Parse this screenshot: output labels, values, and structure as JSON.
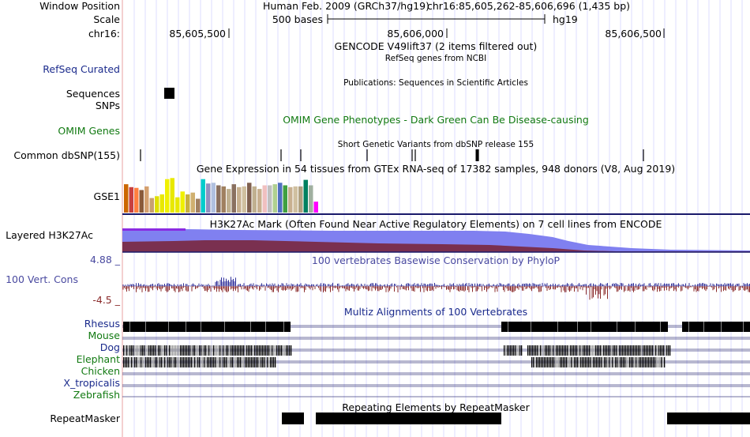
{
  "header": {
    "window_position_label": "Window Position",
    "scale_label": "Scale",
    "chrom_label": "chr16:",
    "assembly_text": "Human Feb. 2009 (GRCh37/hg19)",
    "position_text": "chr16:85,605,262-85,606,696 (1,435 bp)",
    "scale_text": "500 bases",
    "scale_db": "hg19",
    "ruler_ticks": [
      "85,605,500",
      "85,606,000",
      "85,606,500"
    ]
  },
  "tracks": {
    "gencode_title": "GENCODE V49lift37 (2 items filtered out)",
    "refseq_title": "RefSeq genes from NCBI",
    "refseq_label": "RefSeq Curated",
    "publications_title": "Publications: Sequences in Scientific Articles",
    "sequences_label": "Sequences",
    "snps_label": "SNPs",
    "omim_title": "OMIM Gene Phenotypes - Dark Green Can Be Disease-causing",
    "omim_label": "OMIM Genes",
    "dbsnp_title": "Short Genetic Variants from dbSNP release 155",
    "dbsnp_label": "Common dbSNP(155)",
    "gtex_title": "Gene Expression in 54 tissues from GTEx RNA-seq of 17382 samples, 948 donors (V8, Aug 2019)",
    "gtex_label": "GSE1",
    "h3k27ac_title": "H3K27Ac Mark (Often Found Near Active Regulatory Elements) on 7 cell lines from ENCODE",
    "h3k27ac_label": "Layered H3K27Ac",
    "cons_title": "100 vertebrates Basewise Conservation by PhyloP",
    "cons_label": "100 Vert. Cons",
    "cons_max": "4.88 _",
    "cons_min": "-4.5 _",
    "multiz_title": "Multiz Alignments of 100 Vertebrates",
    "species": [
      "Rhesus",
      "Mouse",
      "Dog",
      "Elephant",
      "Chicken",
      "X_tropicalis",
      "Zebrafish"
    ],
    "repeat_title": "Repeating Elements by RepeatMasker",
    "repeat_label": "RepeatMasker"
  },
  "colors": {
    "label_blue": "#1a2a8c",
    "label_green": "#127a12",
    "cons_blue": "#4a4aa0",
    "cons_red": "#8a2a2a",
    "h3k_light": "#8080f0",
    "h3k_dark": "#7a3050",
    "h3k_purple": "#8a2be2",
    "grid": "#c8c8ff"
  },
  "gtex_bar_colors": [
    "#cc6600",
    "#c84040",
    "#ff8040",
    "#8a5a3a",
    "#d4a070",
    "#c8a070",
    "#e0e000",
    "#e8e800",
    "#f0f000",
    "#e8e800",
    "#e8e800",
    "#f0f000",
    "#c8b040",
    "#d0b070",
    "#a08060",
    "#00cccc",
    "#9090c0",
    "#b0c0e0",
    "#8a7060",
    "#a08060",
    "#c0b090",
    "#8a7060",
    "#c8b090",
    "#d0c0a0",
    "#806050",
    "#c0b090",
    "#c8b090",
    "#f0c0c0",
    "#c0c0c0",
    "#b0d090",
    "#5070c0",
    "#40a040",
    "#c8b090",
    "#d0c0a0",
    "#b0a080",
    "#008060",
    "#a0b0a0",
    "#ff00ff"
  ],
  "gtex_bar_levels": [
    0.78,
    0.7,
    0.68,
    0.62,
    0.72,
    0.4,
    0.45,
    0.5,
    0.92,
    0.95,
    0.42,
    0.58,
    0.5,
    0.55,
    0.38,
    0.92,
    0.8,
    0.82,
    0.75,
    0.72,
    0.65,
    0.78,
    0.7,
    0.72,
    0.82,
    0.72,
    0.65,
    0.75,
    0.75,
    0.78,
    0.82,
    0.75,
    0.7,
    0.72,
    0.72,
    0.9,
    0.75,
    0.3
  ]
}
